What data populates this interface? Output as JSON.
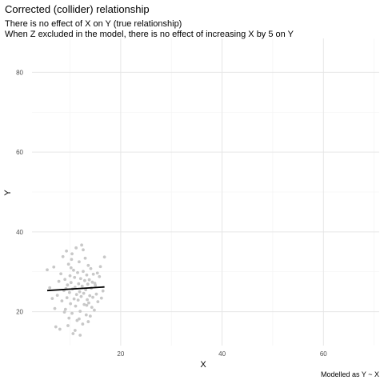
{
  "chart_data": {
    "type": "scatter",
    "title": "Corrected (collider) relationship",
    "subtitle_lines": [
      "There is no effect of X on Y (true relationship)",
      "When Z excluded in the model, there is no effect of increasing X by 5 on Y"
    ],
    "xlabel": "X",
    "ylabel": "Y",
    "caption": "Modelled as Y ~ X",
    "xlim": [
      2.5,
      71
    ],
    "ylim": [
      11.5,
      88.5
    ],
    "x_ticks": [
      20,
      40,
      60
    ],
    "y_ticks": [
      20,
      40,
      60,
      80
    ],
    "grid": true,
    "point_color": "#c8c8c8",
    "line_color": "#000000",
    "points": [
      [
        5.5,
        30.5
      ],
      [
        6.0,
        26.0
      ],
      [
        6.8,
        31.2
      ],
      [
        7.2,
        16.2
      ],
      [
        7.5,
        24.1
      ],
      [
        7.8,
        27.6
      ],
      [
        8.0,
        15.6
      ],
      [
        8.2,
        29.5
      ],
      [
        8.4,
        22.7
      ],
      [
        8.6,
        33.8
      ],
      [
        8.8,
        25.3
      ],
      [
        9.0,
        28.1
      ],
      [
        9.1,
        20.6
      ],
      [
        9.3,
        35.2
      ],
      [
        9.4,
        23.5
      ],
      [
        9.5,
        26.7
      ],
      [
        9.7,
        31.9
      ],
      [
        9.8,
        18.4
      ],
      [
        9.9,
        24.8
      ],
      [
        10.0,
        29.0
      ],
      [
        10.1,
        22.0
      ],
      [
        10.2,
        27.3
      ],
      [
        10.3,
        33.1
      ],
      [
        10.4,
        19.6
      ],
      [
        10.5,
        25.7
      ],
      [
        10.6,
        14.5
      ],
      [
        10.7,
        30.4
      ],
      [
        10.8,
        23.2
      ],
      [
        10.9,
        28.6
      ],
      [
        11.0,
        26.1
      ],
      [
        11.1,
        21.4
      ],
      [
        11.2,
        36.0
      ],
      [
        11.3,
        24.3
      ],
      [
        11.4,
        17.8
      ],
      [
        11.5,
        29.8
      ],
      [
        11.6,
        22.9
      ],
      [
        11.7,
        27.0
      ],
      [
        11.8,
        32.5
      ],
      [
        11.9,
        25.0
      ],
      [
        12.0,
        20.1
      ],
      [
        12.1,
        28.3
      ],
      [
        12.2,
        23.8
      ],
      [
        12.3,
        36.7
      ],
      [
        12.4,
        26.4
      ],
      [
        12.5,
        16.9
      ],
      [
        12.6,
        30.1
      ],
      [
        12.7,
        24.6
      ],
      [
        12.8,
        21.8
      ],
      [
        12.9,
        27.8
      ],
      [
        13.0,
        33.4
      ],
      [
        13.1,
        25.5
      ],
      [
        13.2,
        19.2
      ],
      [
        13.3,
        29.2
      ],
      [
        13.4,
        23.0
      ],
      [
        13.5,
        26.9
      ],
      [
        13.6,
        31.6
      ],
      [
        13.7,
        22.2
      ],
      [
        13.8,
        28.0
      ],
      [
        13.9,
        24.0
      ],
      [
        14.0,
        18.9
      ],
      [
        14.1,
        30.8
      ],
      [
        14.2,
        25.9
      ],
      [
        14.3,
        21.1
      ],
      [
        14.4,
        27.4
      ],
      [
        14.5,
        23.6
      ],
      [
        14.6,
        29.4
      ],
      [
        14.8,
        20.4
      ],
      [
        15.0,
        26.6
      ],
      [
        15.2,
        24.4
      ],
      [
        15.5,
        22.5
      ],
      [
        15.8,
        28.8
      ],
      [
        16.0,
        31.3
      ],
      [
        16.2,
        23.4
      ],
      [
        16.5,
        25.2
      ],
      [
        16.8,
        33.7
      ],
      [
        9.6,
        16.5
      ],
      [
        11.0,
        15.3
      ],
      [
        12.0,
        14.1
      ],
      [
        10.4,
        34.5
      ],
      [
        8.9,
        19.9
      ],
      [
        13.6,
        17.5
      ],
      [
        7.0,
        20.8
      ],
      [
        14.9,
        27.1
      ],
      [
        6.5,
        23.3
      ],
      [
        12.6,
        35.5
      ],
      [
        11.8,
        18.2
      ],
      [
        13.3,
        21.6
      ],
      [
        10.2,
        31.0
      ],
      [
        9.2,
        25.8
      ],
      [
        15.4,
        29.7
      ]
    ],
    "fit_line": {
      "x": [
        5.5,
        16.8
      ],
      "y": [
        25.3,
        26.2
      ]
    }
  }
}
